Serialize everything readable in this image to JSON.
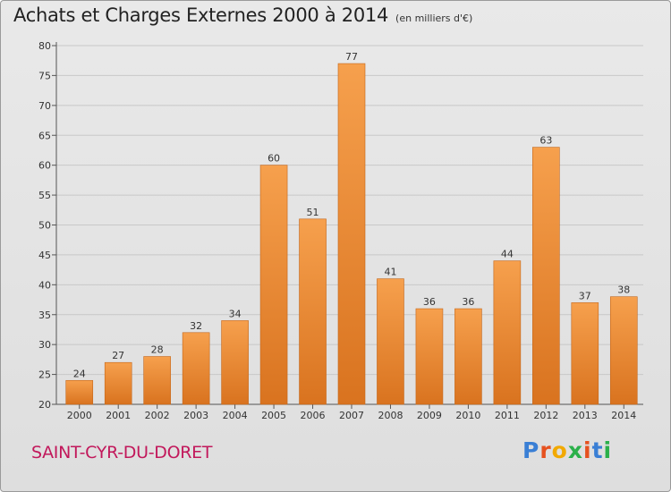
{
  "header": {
    "title": "Achats et Charges Externes 2000 à 2014",
    "unit": "(en milliers d'€)"
  },
  "footer": {
    "commune": "SAINT-CYR-DU-DORET",
    "logo_text": "Proxiti",
    "logo_colors": [
      "#3a7fd5",
      "#e6511f",
      "#f2a900",
      "#2bb04a",
      "#e6511f",
      "#3a7fd5",
      "#2bb04a"
    ]
  },
  "colors": {
    "bar_top": "#f6a04d",
    "bar_bottom": "#d9731f",
    "grid": "#c8c8c8"
  },
  "chart_data": {
    "type": "bar",
    "categories": [
      "2000",
      "2001",
      "2002",
      "2003",
      "2004",
      "2005",
      "2006",
      "2007",
      "2008",
      "2009",
      "2010",
      "2011",
      "2012",
      "2013",
      "2014"
    ],
    "values": [
      24,
      27,
      28,
      32,
      34,
      60,
      51,
      77,
      41,
      36,
      36,
      44,
      63,
      37,
      38
    ],
    "ylim": [
      20,
      80
    ],
    "yticks": [
      20,
      25,
      30,
      35,
      40,
      45,
      50,
      55,
      60,
      65,
      70,
      75,
      80
    ],
    "grid": true,
    "title": "Achats et Charges Externes 2000 à 2014",
    "xlabel": "",
    "ylabel": ""
  }
}
